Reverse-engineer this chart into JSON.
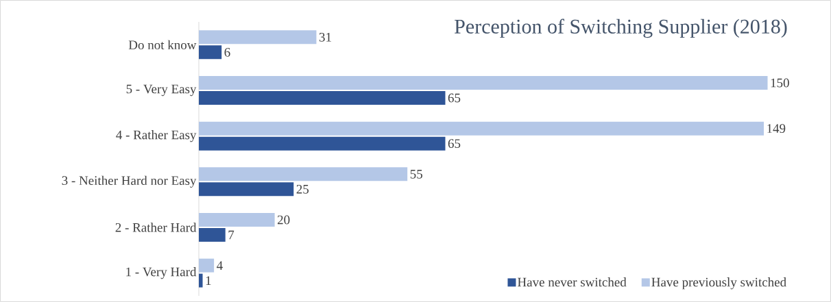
{
  "chart_data": {
    "type": "bar",
    "orientation": "horizontal",
    "title": "Perception of Switching Supplier (2018)",
    "categories": [
      "Do not know",
      "5 - Very Easy",
      "4 - Rather Easy",
      "3 - Neither Hard nor Easy",
      "2 - Rather Hard",
      "1 - Very Hard"
    ],
    "series": [
      {
        "name": "Have never switched",
        "color": "#2f5597",
        "values": [
          6,
          65,
          65,
          25,
          7,
          1
        ]
      },
      {
        "name": "Have previously switched",
        "color": "#b4c7e7",
        "values": [
          31,
          150,
          149,
          55,
          20,
          4
        ]
      }
    ],
    "data_labels": true,
    "legend": "bottom right"
  }
}
